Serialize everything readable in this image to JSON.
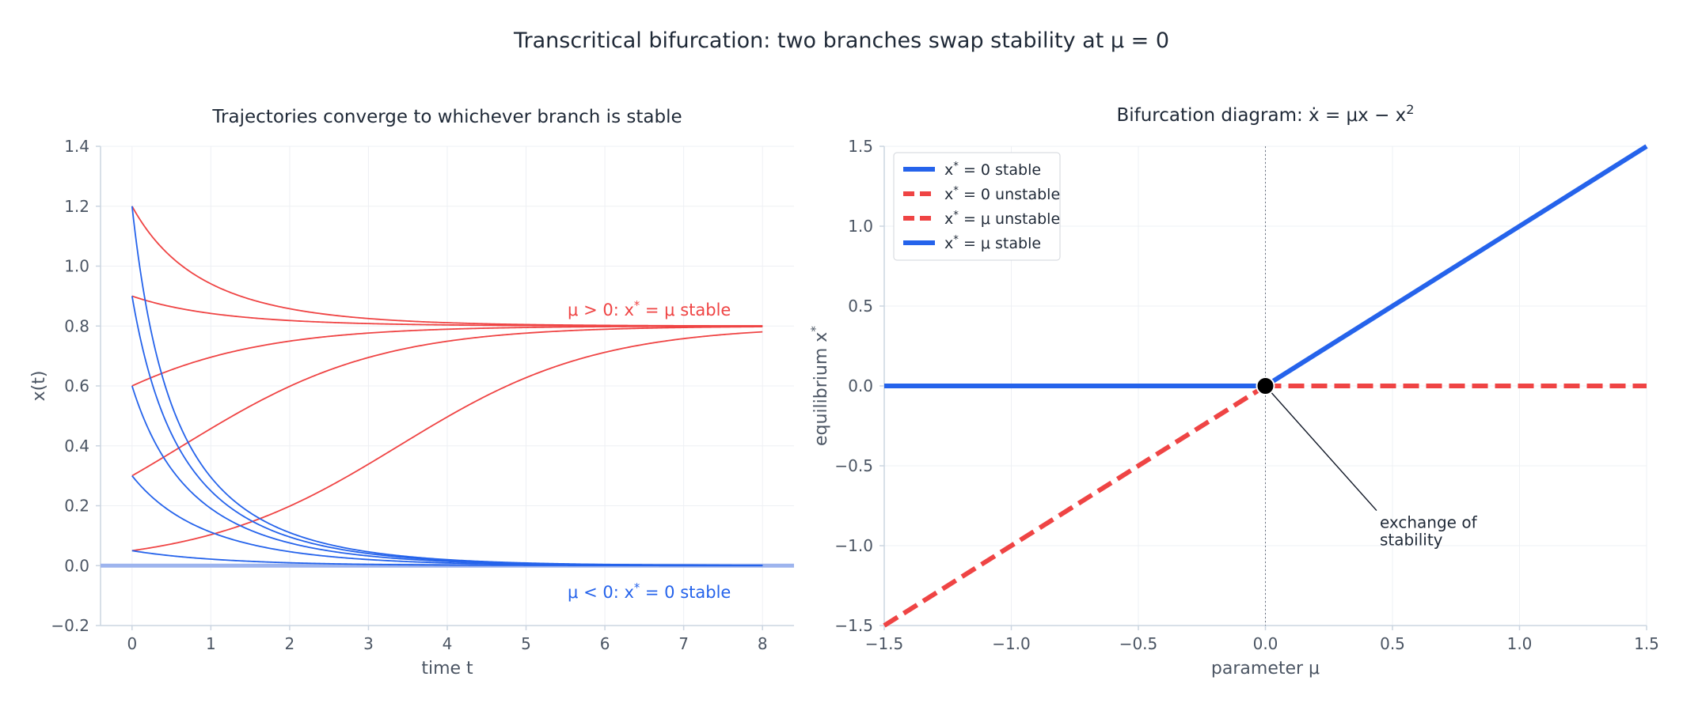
{
  "figure": {
    "title": "Transcritical bifurcation: two branches swap stability at μ = 0",
    "colors": {
      "stable": "#2563eb",
      "unstable": "#ef4444",
      "axis": "#cbd5e1",
      "grid": "#eef0f4",
      "text": "#4b5563"
    }
  },
  "chart_data": [
    {
      "type": "line",
      "title": "Trajectories converge to whichever branch is stable",
      "xlabel": "time t",
      "ylabel": "x(t)",
      "xlim": [
        -0.4,
        8.4
      ],
      "ylim": [
        -0.2,
        1.4
      ],
      "xticks": [
        0,
        1,
        2,
        3,
        4,
        5,
        6,
        7,
        8
      ],
      "yticks": [
        -0.2,
        0.0,
        0.2,
        0.4,
        0.6,
        0.8,
        1.0,
        1.2,
        1.4
      ],
      "xtick_labels": [
        "0",
        "1",
        "2",
        "3",
        "4",
        "5",
        "6",
        "7",
        "8"
      ],
      "ytick_labels": [
        "−0.2",
        "0.0",
        "0.2",
        "0.4",
        "0.6",
        "0.8",
        "1.0",
        "1.2",
        "1.4"
      ],
      "grid": true,
      "model": "dx/dt = μx − x²",
      "t_range": [
        0,
        8
      ],
      "series": [
        {
          "mu": 0.8,
          "color": "#ef4444",
          "initial_conditions": [
            1.2,
            0.9,
            0.6,
            0.3,
            0.05
          ]
        },
        {
          "mu": -0.8,
          "color": "#2563eb",
          "initial_conditions": [
            1.2,
            0.9,
            0.6,
            0.3,
            0.05
          ]
        }
      ],
      "reference_line": {
        "y": 0.0,
        "color": "#9db4ee"
      },
      "annotations": [
        {
          "text_prefix": "μ > 0: x",
          "text_sup": "*",
          "text_suffix": " = μ stable",
          "x": 7.6,
          "y": 0.835,
          "color": "#ef4444"
        },
        {
          "text_prefix": "μ < 0: x",
          "text_sup": "*",
          "text_suffix": " = 0 stable",
          "x": 7.6,
          "y": -0.05,
          "color": "#2563eb"
        }
      ]
    },
    {
      "type": "line",
      "title_prefix": "Bifurcation diagram: ẋ = μx − x",
      "title_sup": "2",
      "xlabel": "parameter μ",
      "ylabel_prefix": "equilibrium x",
      "ylabel_sup": "*",
      "xlim": [
        -1.5,
        1.5
      ],
      "ylim": [
        -1.5,
        1.5
      ],
      "xticks": [
        -1.5,
        -1.0,
        -0.5,
        0.0,
        0.5,
        1.0,
        1.5
      ],
      "yticks": [
        -1.5,
        -1.0,
        -0.5,
        0.0,
        0.5,
        1.0,
        1.5
      ],
      "xtick_labels": [
        "−1.5",
        "−1.0",
        "−0.5",
        "0.0",
        "0.5",
        "1.0",
        "1.5"
      ],
      "ytick_labels": [
        "−1.5",
        "−1.0",
        "−0.5",
        "0.0",
        "0.5",
        "1.0",
        "1.5"
      ],
      "grid": true,
      "legend_position": "top-left",
      "series": [
        {
          "label_prefix": "x",
          "label_sup": "*",
          "label_suffix": " = 0 stable",
          "x": [
            -1.5,
            0.0
          ],
          "y": [
            0.0,
            0.0
          ],
          "color": "#2563eb",
          "dash": "solid"
        },
        {
          "label_prefix": "x",
          "label_sup": "*",
          "label_suffix": " = 0 unstable",
          "x": [
            0.0,
            1.5
          ],
          "y": [
            0.0,
            0.0
          ],
          "color": "#ef4444",
          "dash": "dashed"
        },
        {
          "label_prefix": "x",
          "label_sup": "*",
          "label_suffix": " = μ unstable",
          "x": [
            -1.5,
            0.0
          ],
          "y": [
            -1.5,
            0.0
          ],
          "color": "#ef4444",
          "dash": "dashed"
        },
        {
          "label_prefix": "x",
          "label_sup": "*",
          "label_suffix": " = μ stable",
          "x": [
            0.0,
            1.5
          ],
          "y": [
            0.0,
            1.5
          ],
          "color": "#2563eb",
          "dash": "solid"
        }
      ],
      "bifurcation_point": {
        "x": 0.0,
        "y": 0.0
      },
      "annotation": {
        "lines": [
          "exchange of",
          "stability"
        ],
        "x": 0.45,
        "y": -0.85,
        "arrow_to": [
          0.0,
          0.0
        ]
      }
    }
  ]
}
